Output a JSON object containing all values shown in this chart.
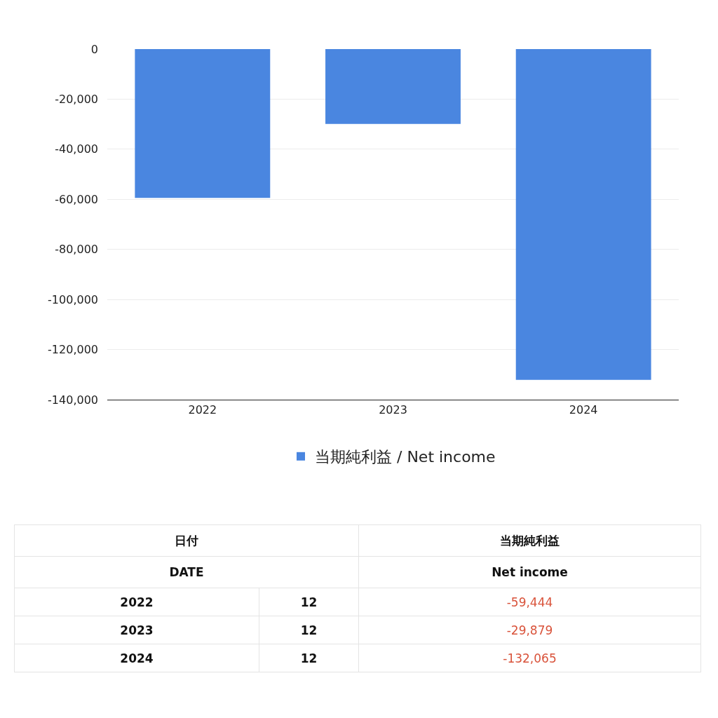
{
  "chart_data": {
    "type": "bar",
    "categories": [
      "2022",
      "2023",
      "2024"
    ],
    "series": [
      {
        "name": "当期純利益 / Net income",
        "color": "#4a86e0",
        "values": [
          -59444,
          -29879,
          -132065
        ]
      }
    ],
    "value_labels": [
      "-59,444",
      "-29,879",
      "-132,065"
    ],
    "ylim": [
      -140000,
      0
    ],
    "yticks": [
      {
        "value": -140000,
        "label": "-140,000"
      },
      {
        "value": -120000,
        "label": "-120,000"
      },
      {
        "value": -100000,
        "label": "-100,000"
      },
      {
        "value": -80000,
        "label": "-80,000"
      },
      {
        "value": -60000,
        "label": "-60,000"
      },
      {
        "value": -40000,
        "label": "-40,000"
      },
      {
        "value": -20000,
        "label": "-20,000"
      },
      0
    ],
    "grid": "y",
    "legend": "bottom",
    "annotations": [
      "日付",
      "当期純利益",
      "DATE",
      "Net income",
      "12",
      "12",
      "12"
    ]
  }
}
